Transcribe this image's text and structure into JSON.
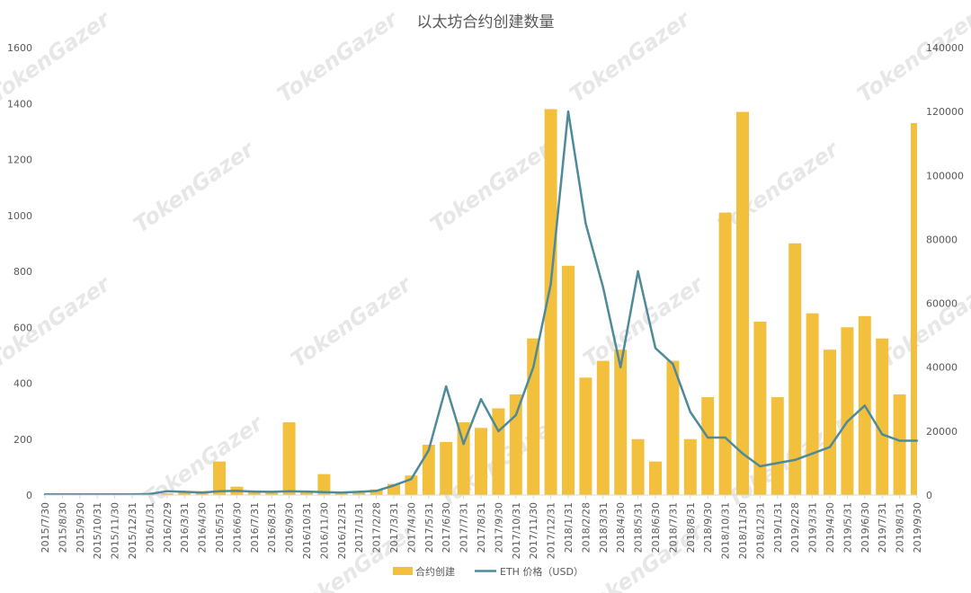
{
  "watermark_text": "TokenGazer",
  "chart_data": {
    "type": "bar+line",
    "title": "以太坊合约创建数量",
    "categories": [
      "2015/7/30",
      "2015/8/30",
      "2015/9/30",
      "2015/10/31",
      "2015/11/30",
      "2015/12/31",
      "2016/1/31",
      "2016/2/29",
      "2016/3/31",
      "2016/4/30",
      "2016/5/31",
      "2016/6/30",
      "2016/7/31",
      "2016/8/31",
      "2016/9/30",
      "2016/10/31",
      "2016/11/30",
      "2016/12/31",
      "2017/1/31",
      "2017/2/28",
      "2017/3/31",
      "2017/4/30",
      "2017/5/31",
      "2017/6/30",
      "2017/7/31",
      "2017/8/31",
      "2017/9/30",
      "2017/10/31",
      "2017/11/30",
      "2017/12/31",
      "2018/1/31",
      "2018/2/28",
      "2018/3/31",
      "2018/4/30",
      "2018/5/31",
      "2018/6/30",
      "2018/7/31",
      "2018/8/31",
      "2018/9/30",
      "2018/10/31",
      "2018/11/30",
      "2018/12/31",
      "2019/1/31",
      "2019/2/28",
      "2019/3/31",
      "2019/4/30",
      "2019/5/31",
      "2019/6/30",
      "2019/7/31",
      "2019/8/31",
      "2019/9/30"
    ],
    "y_left": {
      "ticks": [
        "0",
        "200",
        "400",
        "600",
        "800",
        "1000",
        "1200",
        "1400",
        "1600"
      ],
      "min": 0,
      "max": 1600
    },
    "y_right": {
      "ticks": [
        "0",
        "20000",
        "40000",
        "60000",
        "80000",
        "100000",
        "120000",
        "140000"
      ],
      "min": 0,
      "max": 140000
    },
    "grid": false,
    "legend_position": "bottom",
    "series": [
      {
        "name": "合约创建",
        "type": "bar",
        "axis": "left",
        "color": "#f2c03c",
        "values": [
          0,
          0,
          0,
          0,
          0,
          0,
          2,
          6,
          8,
          14,
          120,
          30,
          15,
          10,
          260,
          12,
          75,
          12,
          10,
          20,
          40,
          70,
          180,
          190,
          260,
          240,
          310,
          360,
          560,
          1380,
          820,
          420,
          480,
          520,
          200,
          120,
          480,
          200,
          350,
          1010,
          1370,
          620,
          350,
          900,
          650,
          520,
          600,
          640,
          560,
          360,
          1330
        ]
      },
      {
        "name": "ETH 价格（USD）",
        "type": "line",
        "axis": "right",
        "color": "#4e8a98",
        "values": [
          200,
          200,
          200,
          200,
          200,
          200,
          300,
          1200,
          1000,
          800,
          1200,
          1300,
          1100,
          1000,
          1200,
          1100,
          900,
          800,
          1000,
          1300,
          3000,
          5000,
          14000,
          34000,
          16000,
          30000,
          20000,
          25000,
          40000,
          66000,
          120000,
          85000,
          65000,
          40000,
          70000,
          46000,
          41000,
          26000,
          18000,
          18000,
          13000,
          9000,
          10000,
          11000,
          13000,
          15000,
          23000,
          28000,
          19000,
          17000,
          17000
        ]
      }
    ]
  }
}
